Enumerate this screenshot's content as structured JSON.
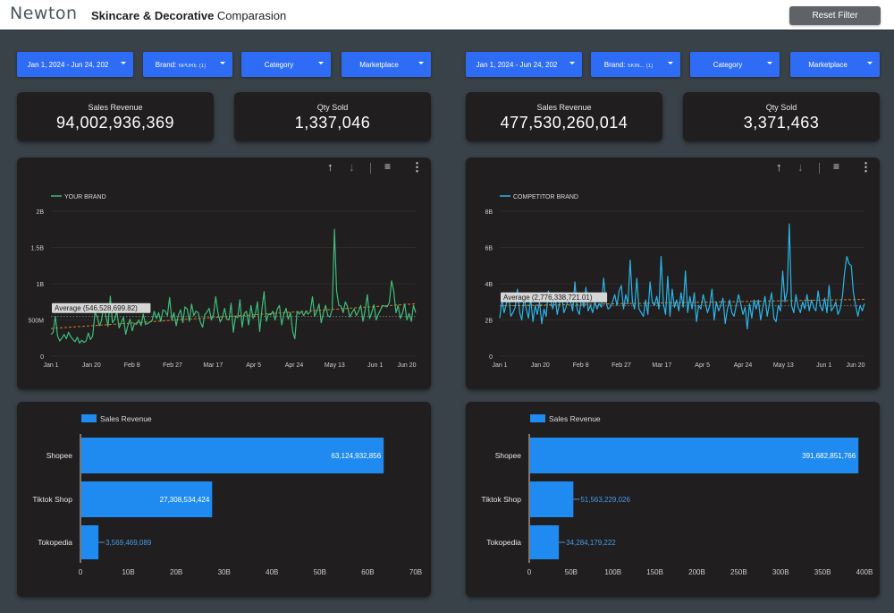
{
  "app": {
    "logo": "Newton",
    "title_bold": "Skincare & Decorative",
    "title_rest": " Comparasion",
    "reset_label": "Reset Filter"
  },
  "left": {
    "filters": {
      "date": "Jan 1, 2024 - Jun 24, 202",
      "brand_prefix": "Brand:",
      "brand_value": "NPURE",
      "brand_count": "(1)",
      "category": "Category",
      "marketplace": "Marketplace"
    },
    "kpis": [
      {
        "label": "Sales Revenue",
        "value": "94,002,936,369"
      },
      {
        "label": "Qty Sold",
        "value": "1,337,046"
      }
    ],
    "line": {
      "legend": "YOUR BRAND",
      "color": "#3dbd7a",
      "yticks": [
        "2B",
        "1.5B",
        "1B",
        "500M",
        "0"
      ],
      "xticks": [
        "Jan 1",
        "Jan 20",
        "Feb 8",
        "Feb 27",
        "Mar 17",
        "Apr 5",
        "Apr 24",
        "May 13",
        "Jun 1",
        "Jun 20"
      ],
      "average_label": "Average (546,528,699.82)"
    },
    "bar": {
      "legend": "Sales Revenue",
      "xticks": [
        "0",
        "10B",
        "20B",
        "30B",
        "40B",
        "50B",
        "60B",
        "70B"
      ]
    }
  },
  "right": {
    "filters": {
      "date": "Jan 1, 2024 - Jun 24, 202",
      "brand_prefix": "Brand:",
      "brand_value": "SKIN...",
      "brand_count": "(1)",
      "category": "Category",
      "marketplace": "Marketplace"
    },
    "kpis": [
      {
        "label": "Sales Revenue",
        "value": "477,530,260,014"
      },
      {
        "label": "Qty Sold",
        "value": "3,371,463"
      }
    ],
    "line": {
      "legend": "COMPETITOR BRAND",
      "color": "#29b6e8",
      "yticks": [
        "8B",
        "6B",
        "4B",
        "2B",
        "0"
      ],
      "xticks": [
        "Jan 1",
        "Jan 20",
        "Feb 8",
        "Feb 27",
        "Mar 17",
        "Apr 5",
        "Apr 24",
        "May 13",
        "Jun 1",
        "Jun 20"
      ],
      "average_label": "Average (2,776,338,721.01)"
    },
    "bar": {
      "legend": "Sales Revenue",
      "xticks": [
        "0",
        "50B",
        "100B",
        "150B",
        "200B",
        "250B",
        "300B",
        "350B",
        "400B"
      ]
    }
  },
  "chart_data": [
    {
      "type": "line",
      "title": "",
      "xlabel": "",
      "ylabel": "",
      "x_start": "2024-01-01",
      "x_end": "2024-06-20",
      "ylim": [
        0,
        2000000000
      ],
      "series": [
        {
          "name": "YOUR BRAND",
          "values": [
            300000000,
            330000000,
            550000000,
            280000000,
            210000000,
            250000000,
            300000000,
            240000000,
            330000000,
            270000000,
            230000000,
            200000000,
            260000000,
            180000000,
            220000000,
            190000000,
            210000000,
            320000000,
            230000000,
            280000000,
            600000000,
            550000000,
            420000000,
            490000000,
            700000000,
            560000000,
            410000000,
            830000000,
            460000000,
            510000000,
            620000000,
            390000000,
            460000000,
            540000000,
            300000000,
            420000000,
            510000000,
            350000000,
            450000000,
            440000000,
            500000000,
            420000000,
            580000000,
            440000000,
            450000000,
            470000000,
            490000000,
            620000000,
            520000000,
            600000000,
            480000000,
            640000000,
            620000000,
            560000000,
            810000000,
            500000000,
            600000000,
            420000000,
            570000000,
            640000000,
            460000000,
            680000000,
            650000000,
            480000000,
            720000000,
            560000000,
            620000000,
            600000000,
            470000000,
            400000000,
            570000000,
            610000000,
            660000000,
            500000000,
            580000000,
            820000000,
            600000000,
            470000000,
            530000000,
            660000000,
            510000000,
            500000000,
            730000000,
            330000000,
            550000000,
            530000000,
            780000000,
            400000000,
            590000000,
            620000000,
            430000000,
            700000000,
            520000000,
            580000000,
            750000000,
            340000000,
            650000000,
            890000000,
            480000000,
            580000000,
            570000000,
            620000000,
            500000000,
            650000000,
            700000000,
            430000000,
            580000000,
            660000000,
            510000000,
            600000000,
            340000000,
            240000000,
            620000000,
            580000000,
            620000000,
            560000000,
            620000000,
            580000000,
            610000000,
            820000000,
            550000000,
            620000000,
            720000000,
            460000000,
            600000000,
            700000000,
            560000000,
            540000000,
            650000000,
            1750000000,
            900000000,
            700000000,
            690000000,
            600000000,
            750000000,
            680000000,
            540000000,
            600000000,
            650000000,
            560000000,
            620000000,
            700000000,
            480000000,
            640000000,
            850000000,
            520000000,
            600000000,
            710000000,
            500000000,
            580000000,
            640000000,
            700000000,
            690000000,
            680000000,
            740000000,
            1040000000,
            900000000,
            600000000,
            700000000,
            520000000,
            600000000,
            720000000,
            500000000,
            590000000,
            480000000,
            700000000,
            600000000
          ]
        },
        {
          "name": "Average",
          "values": [
            546528699.82
          ]
        }
      ]
    },
    {
      "type": "line",
      "title": "",
      "xlabel": "",
      "ylabel": "",
      "x_start": "2024-01-01",
      "x_end": "2024-06-20",
      "ylim": [
        0,
        8000000000
      ],
      "series": [
        {
          "name": "COMPETITOR BRAND",
          "values": [
            2100000000,
            3100000000,
            2400000000,
            2900000000,
            3400000000,
            2200000000,
            2400000000,
            2700000000,
            3700000000,
            2400000000,
            2000000000,
            3200000000,
            2600000000,
            2100000000,
            3200000000,
            1900000000,
            2800000000,
            2300000000,
            3000000000,
            1800000000,
            2600000000,
            2200000000,
            3600000000,
            3100000000,
            2600000000,
            3300000000,
            2300000000,
            2900000000,
            3500000000,
            2400000000,
            2700000000,
            3200000000,
            3000000000,
            2500000000,
            4100000000,
            2600000000,
            2300000000,
            3300000000,
            2700000000,
            3800000000,
            2500000000,
            2800000000,
            2400000000,
            3000000000,
            2600000000,
            2900000000,
            2700000000,
            4300000000,
            3000000000,
            2600000000,
            2700000000,
            3000000000,
            3400000000,
            2800000000,
            3600000000,
            3900000000,
            2600000000,
            3400000000,
            2900000000,
            5300000000,
            3000000000,
            2600000000,
            4300000000,
            2600000000,
            2400000000,
            2200000000,
            3100000000,
            2300000000,
            4100000000,
            3000000000,
            2800000000,
            3300000000,
            2600000000,
            5500000000,
            2900000000,
            2300000000,
            4400000000,
            2200000000,
            3700000000,
            2700000000,
            3100000000,
            2500000000,
            3500000000,
            2700000000,
            4700000000,
            2400000000,
            3300000000,
            2600000000,
            3500000000,
            1900000000,
            2800000000,
            2600000000,
            3400000000,
            2900000000,
            2400000000,
            2800000000,
            3700000000,
            2000000000,
            3000000000,
            2500000000,
            2800000000,
            3200000000,
            1800000000,
            2600000000,
            3100000000,
            2400000000,
            2200000000,
            2800000000,
            3400000000,
            2900000000,
            2300000000,
            2700000000,
            1500000000,
            2900000000,
            2100000000,
            3100000000,
            2600000000,
            3100000000,
            2000000000,
            2700000000,
            3300000000,
            2200000000,
            2900000000,
            3500000000,
            2100000000,
            1900000000,
            2800000000,
            2500000000,
            4700000000,
            3000000000,
            3600000000,
            7300000000,
            2800000000,
            2400000000,
            3400000000,
            2700000000,
            2400000000,
            3000000000,
            2600000000,
            3400000000,
            2500000000,
            3100000000,
            2700000000,
            2500000000,
            3600000000,
            2800000000,
            2500000000,
            3200000000,
            2400000000,
            3900000000,
            2500000000,
            2700000000,
            3000000000,
            2300000000,
            2600000000,
            3300000000,
            4600000000,
            5500000000,
            5100000000,
            5000000000,
            3500000000,
            2800000000,
            2200000000,
            2800000000,
            2500000000,
            2900000000
          ]
        },
        {
          "name": "Average",
          "values": [
            2776338721.01
          ]
        }
      ]
    },
    {
      "type": "bar",
      "orientation": "horizontal",
      "title": "",
      "xlabel": "",
      "ylabel": "",
      "categories": [
        "Shopee",
        "Tiktok Shop",
        "Tokopedia"
      ],
      "series": [
        {
          "name": "Sales Revenue",
          "values": [
            63124932856,
            27308534424,
            3569469089
          ]
        }
      ],
      "value_labels": [
        "63,124,932,856",
        "27,308,534,424",
        "3,569,469,089"
      ],
      "xlim": [
        0,
        70000000000
      ]
    },
    {
      "type": "bar",
      "orientation": "horizontal",
      "title": "",
      "xlabel": "",
      "ylabel": "",
      "categories": [
        "Shopee",
        "Tiktok Shop",
        "Tokopedia"
      ],
      "series": [
        {
          "name": "Sales Revenue",
          "values": [
            391682851766,
            51563229026,
            34284179222
          ]
        }
      ],
      "value_labels": [
        "391,682,851,766",
        "51,563,229,026",
        "34,284,179,222"
      ],
      "xlim": [
        0,
        400000000000
      ]
    }
  ]
}
